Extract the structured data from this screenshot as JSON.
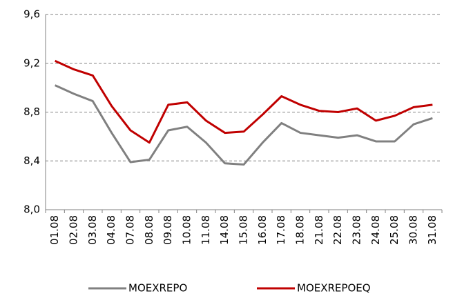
{
  "chart_data": {
    "type": "line",
    "categories": [
      "01.08",
      "02.08",
      "03.08",
      "04.08",
      "07.08",
      "08.08",
      "09.08",
      "10.08",
      "11.08",
      "14.08",
      "15.08",
      "16.08",
      "17.08",
      "18.08",
      "21.08",
      "22.08",
      "23.08",
      "24.08",
      "25.08",
      "30.08",
      "31.08"
    ],
    "series": [
      {
        "name": "MOEXREPO",
        "color": "#808080",
        "values": [
          9.02,
          8.95,
          8.89,
          8.63,
          8.39,
          8.41,
          8.65,
          8.68,
          8.55,
          8.38,
          8.37,
          8.55,
          8.71,
          8.63,
          8.61,
          8.59,
          8.61,
          8.56,
          8.56,
          8.7,
          8.75
        ]
      },
      {
        "name": "MOEXREPOEQ",
        "color": "#c00000",
        "values": [
          9.22,
          9.15,
          9.1,
          8.85,
          8.65,
          8.55,
          8.86,
          8.88,
          8.73,
          8.63,
          8.64,
          8.78,
          8.93,
          8.86,
          8.81,
          8.8,
          8.83,
          8.73,
          8.77,
          8.84,
          8.86
        ]
      }
    ],
    "ylim": [
      8.0,
      9.6
    ],
    "yticks": [
      {
        "value": 8.0,
        "label": "8,0"
      },
      {
        "value": 8.4,
        "label": "8,4"
      },
      {
        "value": 8.8,
        "label": "8,8"
      },
      {
        "value": 9.2,
        "label": "9,2"
      },
      {
        "value": 9.6,
        "label": "9,6"
      }
    ],
    "grid": true,
    "legend": "bottom"
  }
}
